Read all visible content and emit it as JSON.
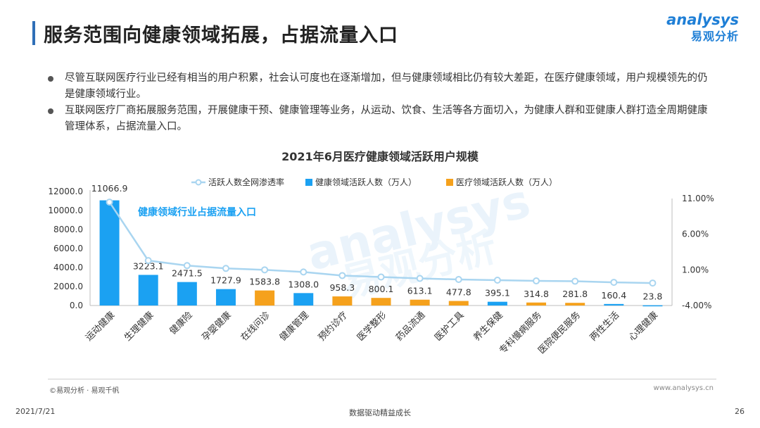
{
  "header": {
    "title": "服务范围向健康领域拓展，占据流量入口",
    "logo_en": "analysys",
    "logo_cn": "易观分析"
  },
  "bullets": [
    "尽管互联网医疗行业已经有相当的用户积累，社会认可度也在逐渐增加，但与健康领域相比仍有较大差距，在医疗健康领域，用户规模领先的仍是健康领域行业。",
    "互联网医疗厂商拓展服务范围，开展健康干预、健康管理等业务，从运动、饮食、生活等各方面切入，为健康人群和亚健康人群打造全周期健康管理体系，占据流量入口。"
  ],
  "chart_data": {
    "type": "bar",
    "title": "2021年6月医疗健康领域活跃用户规模",
    "annotation": "健康领域行业占据流量入口",
    "categories": [
      "运动健康",
      "生理健康",
      "健康险",
      "孕婴健康",
      "在线问诊",
      "健康管理",
      "预约诊疗",
      "医学整形",
      "药品流通",
      "医护工具",
      "养生保健",
      "专科慢病服务",
      "医院便民服务",
      "两性生活",
      "心理健康"
    ],
    "values": [
      11066.9,
      3223.1,
      2471.5,
      1727.9,
      1583.8,
      1308.0,
      958.3,
      800.1,
      613.1,
      477.8,
      395.1,
      314.8,
      281.8,
      160.4,
      23.8
    ],
    "value_labels": [
      "11066.9",
      "3223.1",
      "2471.5",
      "1727.9",
      "1583.8",
      "1308.0",
      "958.3",
      "800.1",
      "613.1",
      "477.8",
      "395.1",
      "314.8",
      "281.8",
      "160.4",
      "23.8"
    ],
    "bar_group": [
      "health",
      "health",
      "health",
      "health",
      "medical",
      "health",
      "medical",
      "medical",
      "medical",
      "medical",
      "health",
      "medical",
      "medical",
      "health",
      "health"
    ],
    "series": [
      {
        "name": "活跃人数全网渗透率",
        "kind": "line",
        "axis": "right",
        "values": [
          10.5,
          2.3,
          1.6,
          1.2,
          1.0,
          0.7,
          0.2,
          0.0,
          -0.2,
          -0.35,
          -0.45,
          -0.55,
          -0.6,
          -0.75,
          -0.85
        ]
      },
      {
        "name": "健康领域活跃人数（万人）",
        "kind": "bar",
        "group": "health"
      },
      {
        "name": "医疗领域活跃人数（万人）",
        "kind": "bar",
        "group": "medical"
      }
    ],
    "ylim": [
      0,
      12000
    ],
    "yticks": [
      "12000.0",
      "10000.0",
      "8000.0",
      "6000.0",
      "4000.0",
      "2000.0",
      "0.0"
    ],
    "y2lim": [
      -4.0,
      11.0
    ],
    "y2ticks": [
      "11.00%",
      "6.00%",
      "1.00%",
      "-4.00%"
    ],
    "colors": {
      "health": "#1ba1f2",
      "medical": "#f5a11c",
      "line": "#a9d5f0"
    }
  },
  "footer": {
    "source": "©易观分析 · 易观千帆",
    "url": "www.analysys.cn",
    "date": "2021/7/21",
    "slogan": "数据驱动精益成长",
    "page": "26"
  }
}
